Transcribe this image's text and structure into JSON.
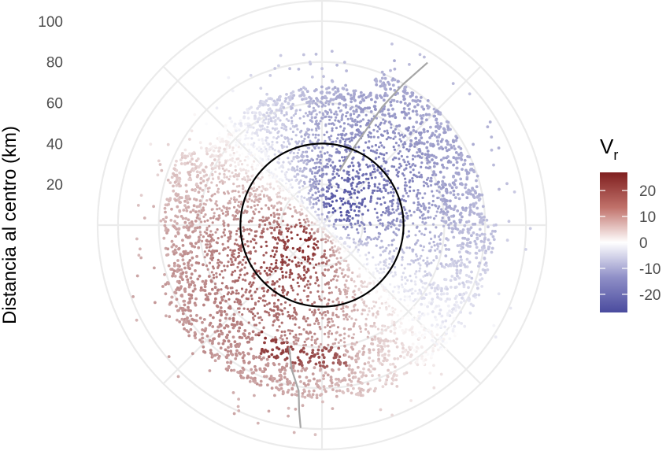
{
  "chart_data": {
    "type": "scatter",
    "coordinate_system": "polar",
    "title": "",
    "ylabel": "Distancia al centro (km)",
    "xlabel": "",
    "r_lim": [
      0,
      110
    ],
    "r_ticks": [
      20,
      40,
      60,
      80,
      100
    ],
    "r_tick_labels": [
      "20",
      "40",
      "60",
      "80",
      "100"
    ],
    "grid": true,
    "reference_circle_radius": 40,
    "color_variable": "Vr",
    "legend": {
      "title_main": "V",
      "title_sub": "r",
      "position": "right",
      "ticks": [
        20,
        10,
        0,
        -10,
        -20
      ],
      "tick_labels": [
        "20",
        "10",
        "0",
        "-10",
        "-20"
      ],
      "range": [
        -27,
        27
      ],
      "colors": {
        "high": "#7f1f1f",
        "mid": "#ffffff",
        "low": "#4a4b9e"
      }
    },
    "velocity_field": {
      "max_speed": 27,
      "positive_direction_deg": 225,
      "decay_radius_km": 45
    },
    "tracks": [
      {
        "points_deg_km": [
          [
            33,
            95
          ],
          [
            30,
            80
          ],
          [
            27,
            65
          ],
          [
            25,
            52
          ],
          [
            22,
            40
          ],
          [
            18,
            28
          ]
        ]
      },
      {
        "points_deg_km": [
          [
            195,
            62
          ],
          [
            192,
            72
          ],
          [
            188,
            82
          ],
          [
            187,
            92
          ],
          [
            186,
            100
          ]
        ]
      }
    ]
  }
}
